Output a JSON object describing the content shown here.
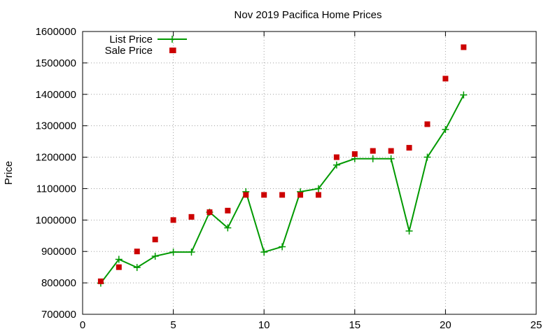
{
  "chart_data": {
    "type": "line",
    "title": "Nov 2019 Pacifica Home Prices",
    "xlabel": "",
    "ylabel": "Price",
    "xlim": [
      0,
      25
    ],
    "ylim": [
      700000,
      1600000
    ],
    "xticks": [
      0,
      5,
      10,
      15,
      20,
      25
    ],
    "yticks": [
      700000,
      800000,
      900000,
      1000000,
      1100000,
      1200000,
      1300000,
      1400000,
      1500000,
      1600000
    ],
    "grid": true,
    "legend_position": "top-left",
    "series": [
      {
        "name": "List Price",
        "style": "line+cross",
        "color": "#009900",
        "x": [
          1,
          2,
          3,
          4,
          5,
          6,
          7,
          8,
          9,
          10,
          11,
          12,
          13,
          14,
          15,
          16,
          17,
          18,
          19,
          20,
          21
        ],
        "y": [
          799000,
          875000,
          849000,
          885000,
          898000,
          898000,
          1025000,
          975000,
          1090000,
          898000,
          915000,
          1090000,
          1100000,
          1175000,
          1195000,
          1195000,
          1195000,
          965000,
          1200000,
          1288000,
          1398000
        ]
      },
      {
        "name": "Sale Price",
        "style": "square",
        "color": "#cc0000",
        "x": [
          1,
          2,
          3,
          4,
          5,
          5,
          6,
          7,
          8,
          9,
          10,
          11,
          12,
          13,
          14,
          15,
          16,
          17,
          18,
          19,
          20,
          21
        ],
        "y": [
          805000,
          850000,
          900000,
          938000,
          1000000,
          1540000,
          1010000,
          1025000,
          1030000,
          1080000,
          1080000,
          1080000,
          1080000,
          1080000,
          1200000,
          1210000,
          1220000,
          1220000,
          1230000,
          1305000,
          1450000,
          1550000
        ]
      }
    ]
  }
}
